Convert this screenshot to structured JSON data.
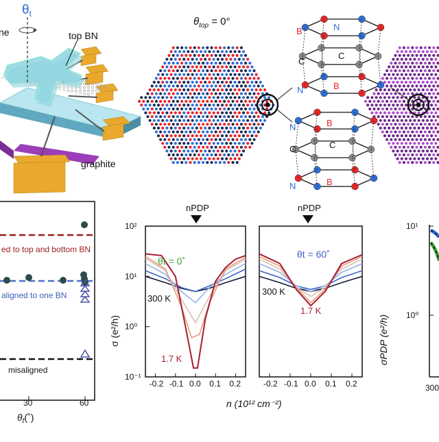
{
  "panel_a": {
    "theta_t": "θ",
    "theta_sub": "t",
    "label_top_bn": "top BN",
    "label_graphite": "graphite",
    "label_cut": "ne"
  },
  "panel_b": {
    "title_theta": "θ",
    "title_sub": "top",
    "title_value": " = 0°",
    "atoms": {
      "B": "B",
      "N": "N",
      "C": "C"
    },
    "colors": {
      "boron": "#e8272b",
      "nitrogen": "#2f6fd6",
      "carbon": "#8c8c8c",
      "purple": "#b04fd0"
    }
  },
  "panel_c": {
    "x_label": "θ",
    "x_sub": "t",
    "x_unit": "(˚)",
    "x_ticks": [
      "30",
      "60"
    ],
    "line_top_bottom": "ed to top and bottom BN",
    "line_one": "aligned to one BN",
    "line_misaligned": "misaligned",
    "colors": {
      "top_bottom": "#9b1b1b",
      "one": "#4a6fc8",
      "misaligned": "#111111",
      "dots": "#2e4a4a"
    }
  },
  "chart_data": [
    {
      "type": "line",
      "annotation": "θt = 0˚",
      "label_300": "300 K",
      "label_17": "1.7 K",
      "marker": "nPDP",
      "ylabel": "σ (e²/h)",
      "xlabel": "n (10¹² cm⁻²)",
      "x_ticks": [
        "-0.2",
        "-0.1",
        "0.0",
        "0.1",
        "0.2"
      ],
      "y_ticks": [
        "10⁻¹",
        "10⁰",
        "10¹",
        "10²"
      ],
      "xlim": [
        -0.25,
        0.25
      ],
      "ylim": [
        0.1,
        100
      ],
      "series": [
        {
          "color": "#111a3c",
          "x": [
            -0.25,
            -0.15,
            -0.07,
            0,
            0.07,
            0.15,
            0.25
          ],
          "y": [
            10,
            7.5,
            5.8,
            5,
            5.8,
            7.5,
            10
          ]
        },
        {
          "color": "#3f63c6",
          "x": [
            -0.25,
            -0.15,
            -0.07,
            0,
            0.07,
            0.15,
            0.25
          ],
          "y": [
            13,
            9,
            6,
            5,
            6.5,
            9,
            14
          ]
        },
        {
          "color": "#8fb2e6",
          "x": [
            -0.25,
            -0.15,
            -0.07,
            0,
            0.07,
            0.15,
            0.25
          ],
          "y": [
            18,
            11,
            5,
            3,
            6,
            11,
            18
          ]
        },
        {
          "color": "#d9c0b0",
          "x": [
            -0.25,
            -0.15,
            -0.07,
            0,
            0.07,
            0.15,
            0.25
          ],
          "y": [
            23,
            13,
            3.5,
            1.2,
            4,
            13,
            22
          ]
        },
        {
          "color": "#e79a7c",
          "x": [
            -0.25,
            -0.15,
            -0.07,
            -0.02,
            0.02,
            0.07,
            0.15,
            0.25
          ],
          "y": [
            25,
            14,
            2.5,
            0.6,
            0.7,
            3,
            14,
            24
          ]
        },
        {
          "color": "#a61d2f",
          "x": [
            -0.25,
            -0.17,
            -0.1,
            -0.05,
            -0.01,
            0.01,
            0.05,
            0.1,
            0.15,
            0.2,
            0.25
          ],
          "y": [
            28,
            26,
            10,
            1,
            0.15,
            0.15,
            1.5,
            8,
            15,
            22,
            26
          ]
        }
      ]
    },
    {
      "type": "line",
      "annotation": "θt = 60˚",
      "label_300": "300 K",
      "label_17": "1.7 K",
      "marker": "nPDP",
      "x_ticks": [
        "-0.2",
        "-0.1",
        "0.0",
        "0.1",
        "0.2"
      ],
      "xlim": [
        -0.25,
        0.25
      ],
      "ylim": [
        0.1,
        100
      ],
      "series": [
        {
          "color": "#111a3c",
          "x": [
            -0.25,
            -0.15,
            -0.07,
            0,
            0.07,
            0.15,
            0.25
          ],
          "y": [
            10,
            7.5,
            5.8,
            5,
            5.8,
            7.5,
            10
          ]
        },
        {
          "color": "#3f63c6",
          "x": [
            -0.25,
            -0.15,
            -0.07,
            0,
            0.07,
            0.15,
            0.25
          ],
          "y": [
            13,
            9.5,
            6.5,
            5.5,
            6.5,
            9.5,
            13
          ]
        },
        {
          "color": "#8fb2e6",
          "x": [
            -0.25,
            -0.15,
            -0.07,
            0,
            0.07,
            0.15,
            0.25
          ],
          "y": [
            18,
            12,
            6.5,
            5,
            6.5,
            12,
            18
          ]
        },
        {
          "color": "#d9c0b0",
          "x": [
            -0.25,
            -0.15,
            -0.07,
            0,
            0.07,
            0.15,
            0.25
          ],
          "y": [
            22,
            14,
            6,
            4,
            6,
            14,
            22
          ]
        },
        {
          "color": "#e79a7c",
          "x": [
            -0.25,
            -0.15,
            -0.07,
            0,
            0.07,
            0.15,
            0.25
          ],
          "y": [
            25,
            16,
            6,
            3,
            5.5,
            16,
            25
          ]
        },
        {
          "color": "#a61d2f",
          "x": [
            -0.25,
            -0.15,
            -0.07,
            0,
            0.07,
            0.15,
            0.25
          ],
          "y": [
            28,
            18,
            5.5,
            2.6,
            5,
            18,
            27
          ]
        }
      ]
    },
    {
      "type": "line",
      "ylabel": "σPDP (e²/h)",
      "x_tick": "300",
      "y_ticks": [
        "10⁰",
        "10¹"
      ],
      "series": [
        {
          "color": "#2d6fd0"
        },
        {
          "color": "#3aa03a"
        }
      ]
    }
  ]
}
